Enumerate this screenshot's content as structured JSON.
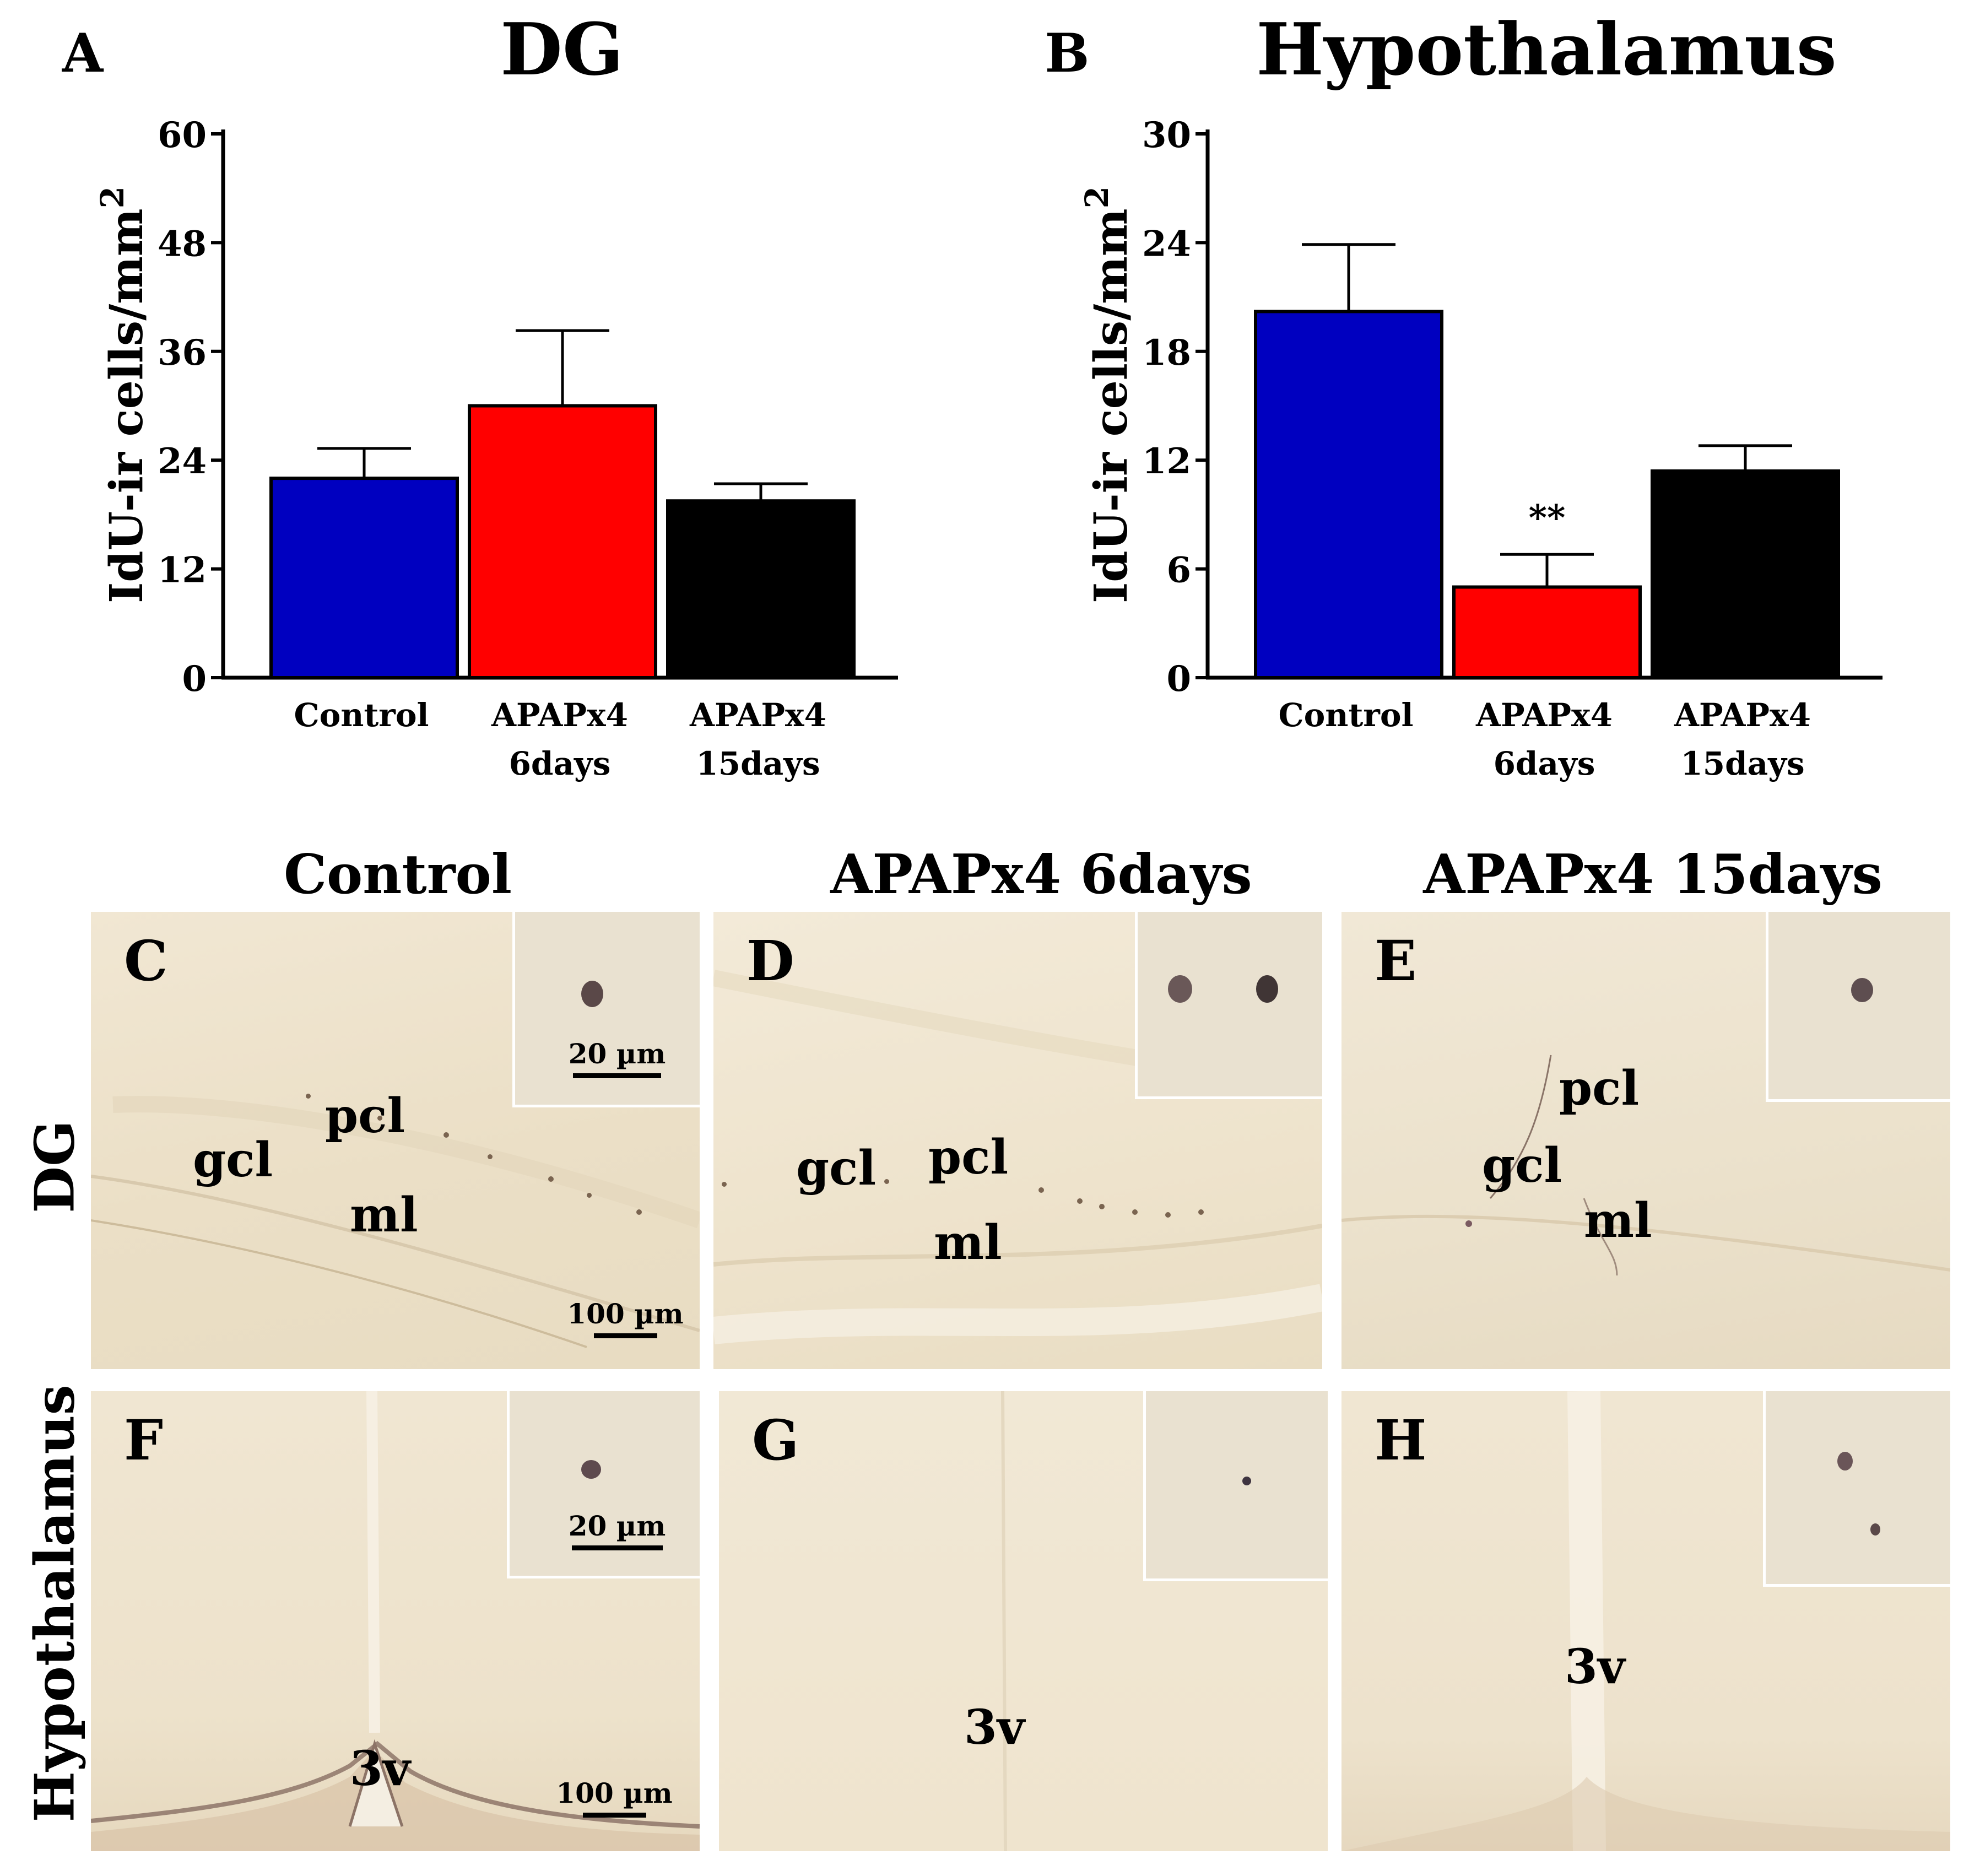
{
  "chart_data": [
    {
      "panel": "A",
      "type": "bar",
      "title": "DG",
      "ylabel": "IdU-ir cells/mm",
      "ylabel_superscript": "2",
      "ylim": [
        0,
        60
      ],
      "yticks": [
        "0",
        "12",
        "24",
        "36",
        "48",
        "60"
      ],
      "categories": [
        [
          "Control"
        ],
        [
          "APAPx4",
          "6days"
        ],
        [
          "APAPx4",
          "15days"
        ]
      ],
      "values": [
        22,
        30,
        19.5
      ],
      "errors": [
        3.3,
        8.3,
        1.9
      ],
      "colors": [
        "#0000c0",
        "#ff0000",
        "#000000"
      ],
      "annotations": [
        "",
        "",
        ""
      ]
    },
    {
      "panel": "B",
      "type": "bar",
      "title": "Hypothalamus",
      "ylabel": "IdU-ir cells/mm",
      "ylabel_superscript": "2",
      "ylim": [
        0,
        30
      ],
      "yticks": [
        "0",
        "6",
        "12",
        "18",
        "24",
        "30"
      ],
      "categories": [
        [
          "Control"
        ],
        [
          "APAPx4",
          "6days"
        ],
        [
          "APAPx4",
          "15days"
        ]
      ],
      "values": [
        20.2,
        5,
        11.4
      ],
      "errors": [
        3.7,
        1.8,
        1.4
      ],
      "colors": [
        "#0000c0",
        "#ff0000",
        "#000000"
      ],
      "annotations": [
        "",
        "**",
        ""
      ]
    }
  ],
  "micrographs": {
    "columns": [
      "Control",
      "APAPx4 6days",
      "APAPx4 15days"
    ],
    "rows": [
      "DG",
      "Hypothalamus"
    ],
    "panels": {
      "C": {
        "letter": "C",
        "labels": [
          "gcl",
          "pcl",
          "ml"
        ],
        "inset_scale": "20 µm",
        "scale": "100 µm"
      },
      "D": {
        "letter": "D",
        "labels": [
          "gcl",
          "pcl",
          "ml"
        ]
      },
      "E": {
        "letter": "E",
        "labels": [
          "pcl",
          "gcl",
          "ml"
        ]
      },
      "F": {
        "letter": "F",
        "labels": [
          "3v"
        ],
        "inset_scale": "20 µm",
        "scale": "100 µm"
      },
      "G": {
        "letter": "G",
        "labels": [
          "3v"
        ]
      },
      "H": {
        "letter": "H",
        "labels": [
          "3v"
        ]
      }
    }
  }
}
